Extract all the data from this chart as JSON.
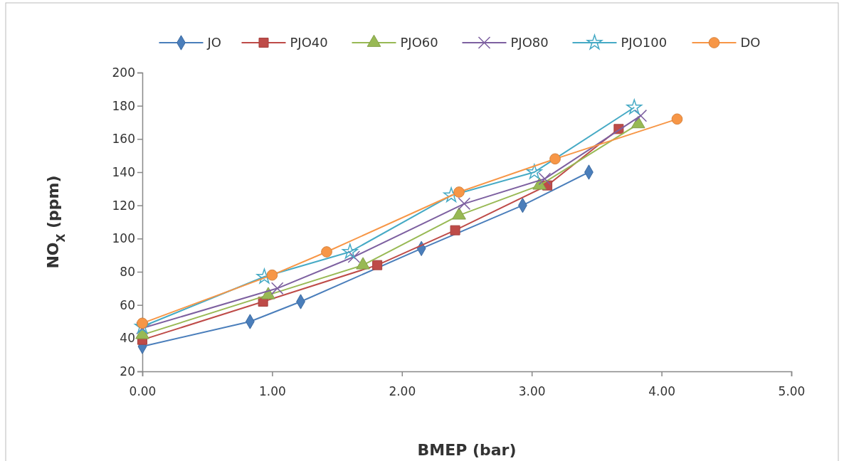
{
  "chart_data": {
    "type": "line",
    "xlabel": "BMEP (bar)",
    "ylabel": "NO$_{X}$ (ppm)",
    "xlim": [
      0,
      5
    ],
    "xticks": [
      {
        "value": 0,
        "label": "0.00"
      },
      {
        "value": 1,
        "label": "1.00"
      },
      {
        "value": 2,
        "label": "2.00"
      },
      {
        "value": 3,
        "label": "3.00"
      },
      {
        "value": 4,
        "label": "4.00"
      },
      {
        "value": 5,
        "label": "5.00"
      }
    ],
    "ylim": [
      20,
      200
    ],
    "yticks": [
      20,
      40,
      60,
      80,
      100,
      120,
      140,
      160,
      180,
      200
    ],
    "grid": false,
    "legend": "top",
    "series": [
      {
        "name": "JO",
        "color": "#4a7ebb",
        "marker": "diamond",
        "x": [
          0,
          0.83,
          1.22,
          2.15,
          2.93,
          3.44
        ],
        "values": [
          35,
          50,
          62,
          94,
          120,
          140
        ]
      },
      {
        "name": "PJO40",
        "color": "#be4b48",
        "marker": "square",
        "x": [
          0,
          0.93,
          1.81,
          2.41,
          3.12,
          3.67
        ],
        "values": [
          39,
          62,
          84,
          105,
          132,
          166
        ]
      },
      {
        "name": "PJO60",
        "color": "#98b954",
        "marker": "triangle",
        "x": [
          0,
          0.97,
          1.7,
          2.44,
          3.06,
          3.82
        ],
        "values": [
          42,
          66,
          84,
          114,
          132,
          169
        ]
      },
      {
        "name": "PJO80",
        "color": "#7d60a0",
        "marker": "cross",
        "x": [
          0,
          1.04,
          1.63,
          2.48,
          3.1,
          3.84
        ],
        "values": [
          46,
          70,
          89,
          121,
          136,
          174
        ]
      },
      {
        "name": "PJO100",
        "color": "#46aac5",
        "marker": "star",
        "x": [
          0,
          0.94,
          1.6,
          2.38,
          3.02,
          3.79
        ],
        "values": [
          47,
          77,
          92,
          126,
          140,
          179
        ]
      },
      {
        "name": "DO",
        "color": "#f79646",
        "marker": "circle",
        "x": [
          0,
          1,
          1.42,
          2.44,
          3.18,
          4.12
        ],
        "values": [
          49,
          78,
          92,
          128,
          148,
          172
        ]
      }
    ]
  }
}
